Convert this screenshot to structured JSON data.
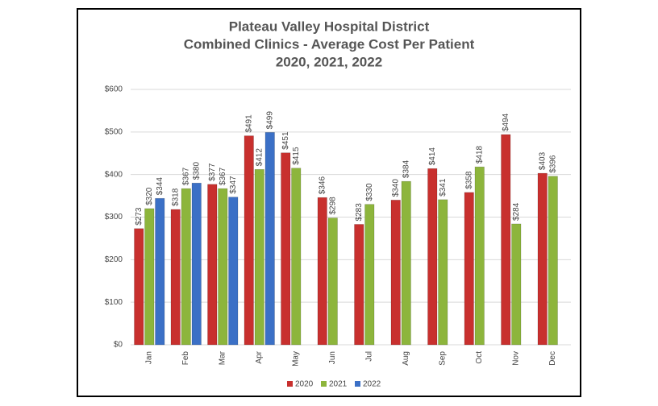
{
  "chart_data": {
    "type": "bar",
    "title": [
      "Plateau Valley Hospital District",
      "Combined Clinics  - Average Cost Per Patient",
      "2020, 2021, 2022"
    ],
    "categories": [
      "Jan",
      "Feb",
      "Mar",
      "Apr",
      "May",
      "Jun",
      "Jul",
      "Aug",
      "Sep",
      "Oct",
      "Nov",
      "Dec"
    ],
    "series": [
      {
        "name": "2020",
        "color": "#c8302e",
        "values": [
          273,
          318,
          377,
          491,
          451,
          346,
          283,
          340,
          414,
          358,
          494,
          403
        ],
        "value_labels": [
          "$273",
          "$318",
          "$377",
          "$491",
          "$451",
          "$346",
          "$283",
          "$340",
          "$414",
          "$358",
          "$494",
          "$403"
        ]
      },
      {
        "name": "2021",
        "color": "#8db53c",
        "values": [
          320,
          367,
          367,
          412,
          415,
          298,
          330,
          384,
          341,
          418,
          284,
          396
        ],
        "value_labels": [
          "$320",
          "$367",
          "$367",
          "$412",
          "$415",
          "$298",
          "$330",
          "$384",
          "$341",
          "$418",
          "$284",
          "$396"
        ]
      },
      {
        "name": "2022",
        "color": "#3b70c6",
        "values": [
          344,
          380,
          347,
          499,
          null,
          null,
          null,
          null,
          null,
          null,
          null,
          null
        ],
        "value_labels": [
          "$344",
          "$380",
          "$347",
          "$499",
          null,
          null,
          null,
          null,
          null,
          null,
          null,
          null
        ]
      }
    ],
    "ylim": [
      0,
      600
    ],
    "yticks": [
      {
        "value": 0,
        "label": "$0"
      },
      {
        "value": 100,
        "label": "$100"
      },
      {
        "value": 200,
        "label": "$200"
      },
      {
        "value": 300,
        "label": "$300"
      },
      {
        "value": 400,
        "label": "$400"
      },
      {
        "value": 500,
        "label": "$500"
      },
      {
        "value": 600,
        "label": "$600"
      }
    ],
    "grid": true,
    "legend": "bottom"
  }
}
